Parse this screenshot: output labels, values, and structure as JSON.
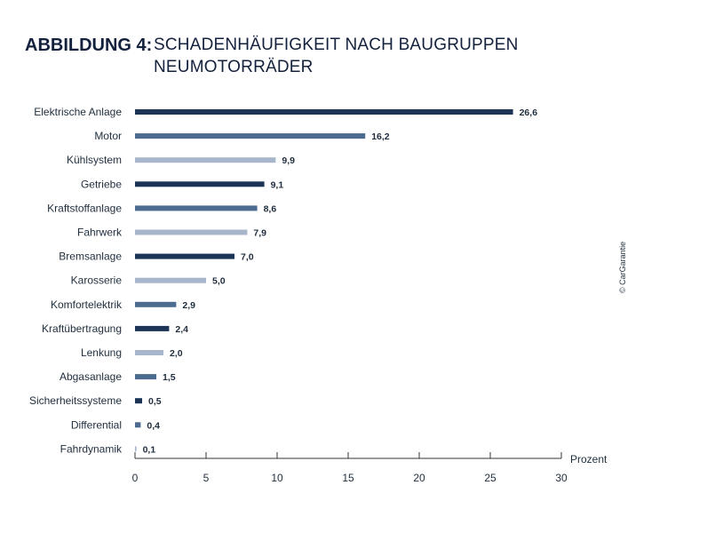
{
  "title": {
    "prefix": "ABBILDUNG 4:",
    "line1": "SCHADENHÄUFIGKEIT NACH BAUGRUPPEN",
    "line2": "NEUMOTORRÄDER"
  },
  "copyright": "© CarGarantie",
  "colors": {
    "dark": "#1c3557",
    "medium": "#4d6a8f",
    "light": "#a8b6cb",
    "axis": "#333333",
    "text": "#1f2d3d"
  },
  "chart_data": {
    "type": "bar",
    "orientation": "horizontal",
    "categories": [
      "Elektrische Anlage",
      "Motor",
      "Kühlsystem",
      "Getriebe",
      "Kraftstoffanlage",
      "Fahrwerk",
      "Bremsanlage",
      "Karosserie",
      "Komfortelektrik",
      "Kraftübertragung",
      "Lenkung",
      "Abgasanlage",
      "Sicherheitssysteme",
      "Differential",
      "Fahrdynamik"
    ],
    "values": [
      26.6,
      16.2,
      9.9,
      9.1,
      8.6,
      7.9,
      7.0,
      5.0,
      2.9,
      2.4,
      2.0,
      1.5,
      0.5,
      0.4,
      0.1
    ],
    "value_labels": [
      "26,6",
      "16,2",
      "9,9",
      "9,1",
      "8,6",
      "7,9",
      "7,0",
      "5,0",
      "2,9",
      "2,4",
      "2,0",
      "1,5",
      "0,5",
      "0,4",
      "0,1"
    ],
    "bar_colors": [
      "dark",
      "medium",
      "light",
      "dark",
      "medium",
      "light",
      "dark",
      "light",
      "medium",
      "dark",
      "light",
      "medium",
      "dark",
      "medium",
      "light"
    ],
    "xlabel": "Prozent",
    "xlim": [
      0,
      30
    ],
    "xticks": [
      0,
      5,
      10,
      15,
      20,
      25,
      30
    ],
    "grid": false,
    "legend": "none"
  }
}
